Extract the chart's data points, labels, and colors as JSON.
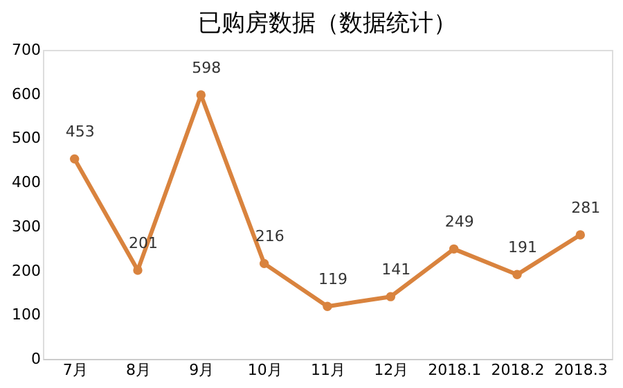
{
  "chart_data": {
    "type": "line",
    "title": "已购房数据（数据统计）",
    "categories": [
      "7月",
      "8月",
      "9月",
      "10月",
      "11月",
      "12月",
      "2018.1",
      "2018.2",
      "2018.3"
    ],
    "series": [
      {
        "color": "#d9833e",
        "values": [
          453,
          201,
          598,
          216,
          119,
          141,
          249,
          191,
          281
        ]
      }
    ],
    "ylim": [
      0,
      700
    ],
    "yticks": [
      0,
      100,
      200,
      300,
      400,
      500,
      600,
      700
    ],
    "grid": false,
    "marker": "circle",
    "line_style": "solid",
    "data_labels": true,
    "legend": false
  }
}
